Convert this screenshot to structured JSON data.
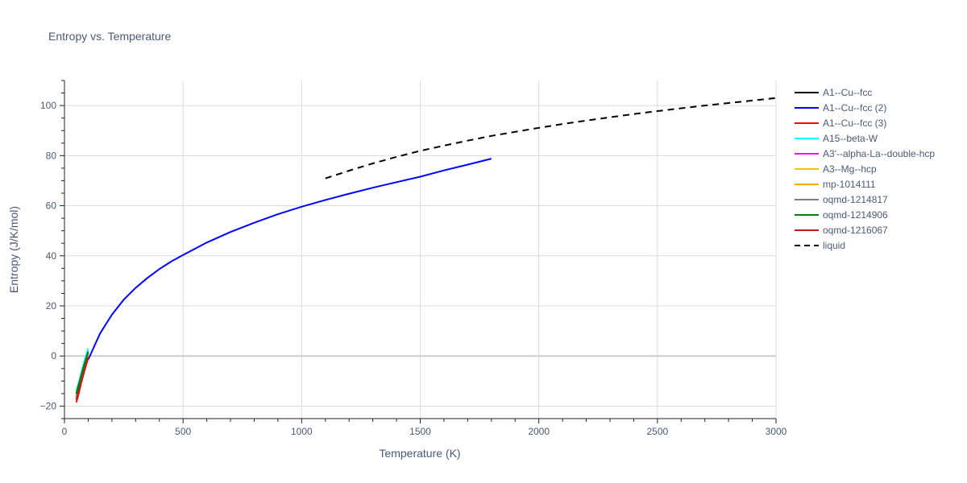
{
  "chart_data": {
    "type": "line",
    "title": "Entropy vs. Temperature",
    "xlabel": "Temperature (K)",
    "ylabel": "Entropy (J/K/mol)",
    "xlim": [
      0,
      3000
    ],
    "ylim": [
      -25,
      110
    ],
    "x_ticks": [
      0,
      500,
      1000,
      1500,
      2000,
      2500,
      3000
    ],
    "x_tick_labels": [
      "0",
      "500",
      "1000",
      "1500",
      "2000",
      "2500",
      "3000"
    ],
    "y_ticks": [
      -20,
      0,
      20,
      40,
      60,
      80,
      100
    ],
    "y_tick_labels": [
      "−20",
      "0",
      "20",
      "40",
      "60",
      "80",
      "100"
    ],
    "grid": true,
    "legend_position": "right",
    "series": [
      {
        "name": "A1--Cu--fcc",
        "color": "#000000",
        "dash": "solid",
        "x": [
          50,
          60,
          70,
          80,
          90,
          100
        ],
        "y": [
          -16.5,
          -13,
          -9.5,
          -6.5,
          -3.5,
          -0.8
        ]
      },
      {
        "name": "A1--Cu--fcc (2)",
        "color": "#0000ff",
        "dash": "solid",
        "x": [
          100,
          150,
          200,
          250,
          300,
          350,
          400,
          450,
          500,
          600,
          700,
          800,
          900,
          1000,
          1100,
          1200,
          1300,
          1400,
          1500,
          1600,
          1700,
          1800
        ],
        "y": [
          -1.5,
          9,
          16.5,
          22.5,
          27.2,
          31.2,
          34.7,
          37.7,
          40.3,
          45.3,
          49.5,
          53.2,
          56.6,
          59.6,
          62.3,
          64.8,
          67.2,
          69.4,
          71.6,
          74.1,
          76.4,
          78.8
        ]
      },
      {
        "name": "A1--Cu--fcc (3)",
        "color": "#ff0000",
        "dash": "solid",
        "x": [
          50,
          60,
          70,
          80,
          90,
          100
        ],
        "y": [
          -18.5,
          -15,
          -11,
          -7.5,
          -4,
          -1
        ]
      },
      {
        "name": "A15--beta-W",
        "color": "#00ffff",
        "dash": "solid",
        "x": [
          50,
          60,
          70,
          80,
          90,
          100
        ],
        "y": [
          -14,
          -10.5,
          -7,
          -3.5,
          0,
          3
        ]
      },
      {
        "name": "A3'--alpha-La--double-hcp",
        "color": "#ff00ff",
        "dash": "solid",
        "x": [
          50,
          60,
          70,
          80,
          90,
          100
        ],
        "y": [
          -15,
          -11.5,
          -8,
          -4.5,
          -1.5,
          1.5
        ]
      },
      {
        "name": "A3--Mg--hcp",
        "color": "#ffc000",
        "dash": "solid",
        "x": [
          50,
          60,
          70,
          80,
          90,
          100
        ],
        "y": [
          -16,
          -12.5,
          -9,
          -5.5,
          -2.5,
          0.5
        ]
      },
      {
        "name": "mp-1014111",
        "color": "#ffa500",
        "dash": "solid",
        "x": [
          50,
          60,
          70,
          80,
          90,
          100
        ],
        "y": [
          -17,
          -13.5,
          -10,
          -6.5,
          -3,
          0
        ]
      },
      {
        "name": "oqmd-1214817",
        "color": "#808080",
        "dash": "solid",
        "x": [
          50,
          60,
          70,
          80,
          90,
          100
        ],
        "y": [
          -15.5,
          -12,
          -8.5,
          -5,
          -2,
          1
        ]
      },
      {
        "name": "oqmd-1214906",
        "color": "#008000",
        "dash": "solid",
        "x": [
          50,
          60,
          70,
          80,
          90,
          100
        ],
        "y": [
          -15,
          -11.5,
          -8,
          -4.5,
          -1.5,
          1.8
        ]
      },
      {
        "name": "oqmd-1216067",
        "color": "#b22222",
        "dash": "solid",
        "x": [
          50,
          60,
          70,
          80,
          90,
          100
        ],
        "y": [
          -17.5,
          -14,
          -10.5,
          -7,
          -3.5,
          -0.5
        ]
      },
      {
        "name": "liquid",
        "color": "#000000",
        "dash": "dash",
        "x": [
          1100,
          1200,
          1300,
          1400,
          1500,
          1600,
          1700,
          1800,
          1900,
          2000,
          2100,
          2200,
          2300,
          2400,
          2500,
          2600,
          2700,
          2800,
          2900,
          3000
        ],
        "y": [
          70.9,
          74.0,
          76.9,
          79.5,
          81.9,
          84.0,
          86.0,
          87.9,
          89.5,
          91.1,
          92.6,
          94.0,
          95.3,
          96.6,
          97.8,
          98.9,
          100.0,
          101.0,
          102.0,
          103.0
        ]
      }
    ]
  }
}
